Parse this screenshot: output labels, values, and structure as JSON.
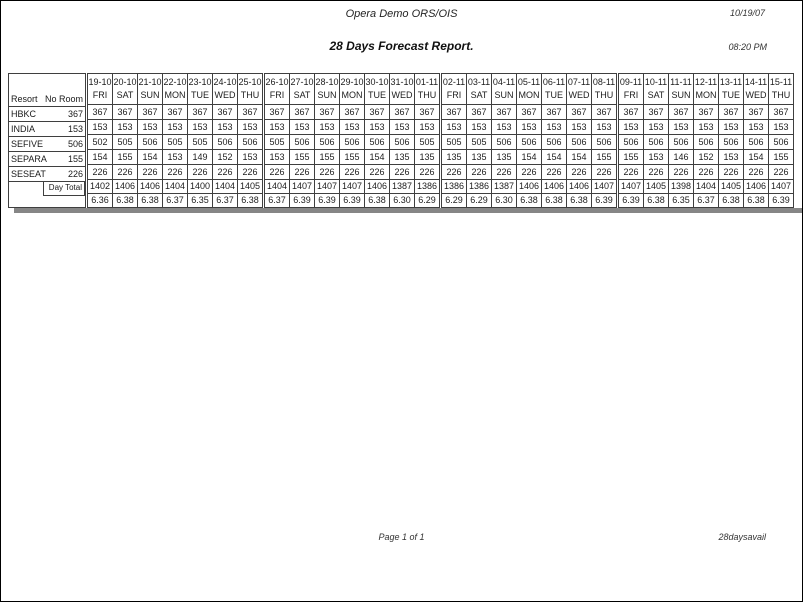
{
  "header": {
    "app_title": "Opera Demo ORS/OIS",
    "date": "10/19/07",
    "report_title": "28 Days Forecast Report.",
    "time": "08:20 PM"
  },
  "table": {
    "resort_header": "Resort",
    "no_room_header": "No Room",
    "day_total_label": "Day Total",
    "columns": [
      {
        "date": "19-10",
        "day": "FRI"
      },
      {
        "date": "20-10",
        "day": "SAT"
      },
      {
        "date": "21-10",
        "day": "SUN"
      },
      {
        "date": "22-10",
        "day": "MON"
      },
      {
        "date": "23-10",
        "day": "TUE"
      },
      {
        "date": "24-10",
        "day": "WED"
      },
      {
        "date": "25-10",
        "day": "THU"
      },
      {
        "date": "26-10",
        "day": "FRI"
      },
      {
        "date": "27-10",
        "day": "SAT"
      },
      {
        "date": "28-10",
        "day": "SUN"
      },
      {
        "date": "29-10",
        "day": "MON"
      },
      {
        "date": "30-10",
        "day": "TUE"
      },
      {
        "date": "31-10",
        "day": "WED"
      },
      {
        "date": "01-11",
        "day": "THU"
      },
      {
        "date": "02-11",
        "day": "FRI"
      },
      {
        "date": "03-11",
        "day": "SAT"
      },
      {
        "date": "04-11",
        "day": "SUN"
      },
      {
        "date": "05-11",
        "day": "MON"
      },
      {
        "date": "06-11",
        "day": "TUE"
      },
      {
        "date": "07-11",
        "day": "WED"
      },
      {
        "date": "08-11",
        "day": "THU"
      },
      {
        "date": "09-11",
        "day": "FRI"
      },
      {
        "date": "10-11",
        "day": "SAT"
      },
      {
        "date": "11-11",
        "day": "SUN"
      },
      {
        "date": "12-11",
        "day": "MON"
      },
      {
        "date": "13-11",
        "day": "TUE"
      },
      {
        "date": "14-11",
        "day": "WED"
      },
      {
        "date": "15-11",
        "day": "THU"
      }
    ],
    "rows": [
      {
        "resort": "HBKC",
        "no_room": 367,
        "values": [
          367,
          367,
          367,
          367,
          367,
          367,
          367,
          367,
          367,
          367,
          367,
          367,
          367,
          367,
          367,
          367,
          367,
          367,
          367,
          367,
          367,
          367,
          367,
          367,
          367,
          367,
          367,
          367
        ]
      },
      {
        "resort": "INDIA",
        "no_room": 153,
        "values": [
          153,
          153,
          153,
          153,
          153,
          153,
          153,
          153,
          153,
          153,
          153,
          153,
          153,
          153,
          153,
          153,
          153,
          153,
          153,
          153,
          153,
          153,
          153,
          153,
          153,
          153,
          153,
          153
        ]
      },
      {
        "resort": "SEFIVE",
        "no_room": 506,
        "values": [
          502,
          505,
          506,
          505,
          505,
          506,
          506,
          505,
          506,
          506,
          506,
          506,
          506,
          505,
          505,
          505,
          506,
          506,
          506,
          506,
          506,
          506,
          506,
          506,
          506,
          506,
          506,
          506
        ]
      },
      {
        "resort": "SEPARA",
        "no_room": 155,
        "values": [
          154,
          155,
          154,
          153,
          149,
          152,
          153,
          153,
          155,
          155,
          155,
          154,
          135,
          135,
          135,
          135,
          135,
          154,
          154,
          154,
          155,
          155,
          153,
          146,
          152,
          153,
          154,
          155
        ]
      },
      {
        "resort": "SESEAT",
        "no_room": 226,
        "values": [
          226,
          226,
          226,
          226,
          226,
          226,
          226,
          226,
          226,
          226,
          226,
          226,
          226,
          226,
          226,
          226,
          226,
          226,
          226,
          226,
          226,
          226,
          226,
          226,
          226,
          226,
          226,
          226
        ]
      }
    ],
    "day_totals": [
      1402,
      1406,
      1406,
      1404,
      1400,
      1404,
      1405,
      1404,
      1407,
      1407,
      1407,
      1406,
      1387,
      1386,
      1386,
      1386,
      1387,
      1406,
      1406,
      1406,
      1407,
      1407,
      1405,
      1398,
      1404,
      1405,
      1406,
      1407
    ],
    "percentages": [
      "6.36",
      "6.38",
      "6.38",
      "6.37",
      "6.35",
      "6.37",
      "6.38",
      "6.37",
      "6.39",
      "6.39",
      "6.39",
      "6.38",
      "6.30",
      "6.29",
      "6.29",
      "6.29",
      "6.30",
      "6.38",
      "6.38",
      "6.38",
      "6.39",
      "6.39",
      "6.38",
      "6.35",
      "6.37",
      "6.38",
      "6.38",
      "6.39"
    ]
  },
  "footer": {
    "page_label": "Page 1 of 1",
    "report_code": "28daysavail"
  }
}
